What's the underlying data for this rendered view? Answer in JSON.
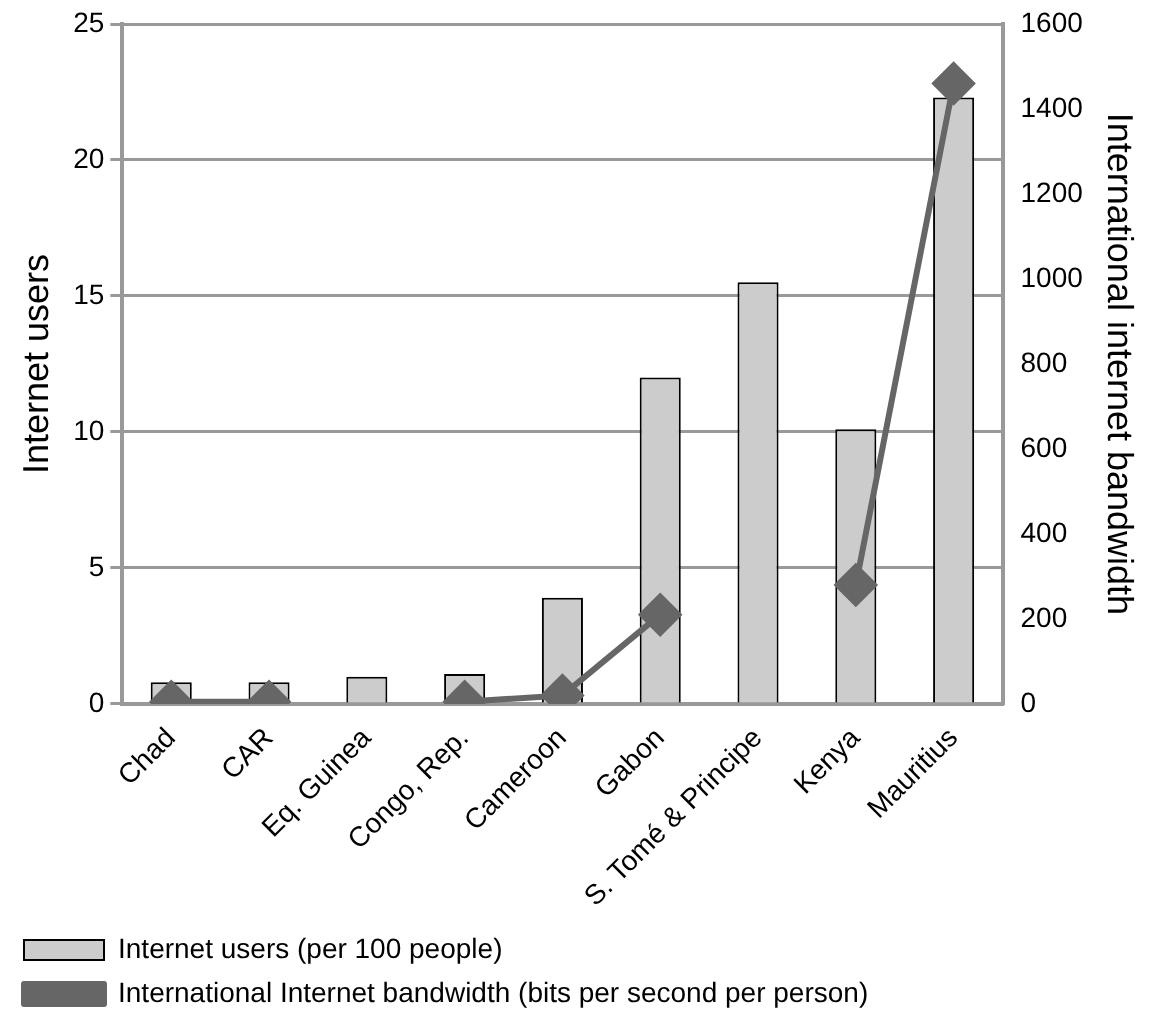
{
  "chart_data": {
    "type": "bar",
    "categories": [
      "Chad",
      "CAR",
      "Eq. Guinea",
      "Congo, Rep.",
      "Cameroon",
      "Gabon",
      "S. Tomé & Principe",
      "Kenya",
      "Mauritius"
    ],
    "series": [
      {
        "name": "Internet users (per 100 people)",
        "color": "#cccccc",
        "values": [
          0.8,
          0.8,
          1.0,
          1.1,
          3.9,
          12.0,
          15.5,
          10.1,
          22.3
        ]
      },
      {
        "name": "International Internet bandwidth (bits per second per person)",
        "type": "line",
        "axis": "y2",
        "color": "#666666",
        "values": [
          5,
          5,
          null,
          5,
          20,
          210,
          null,
          280,
          1460
        ]
      }
    ],
    "ylabel": "Internet users",
    "y2label": "International internet bandwidth",
    "ylim": [
      0,
      25
    ],
    "yticks": [
      0,
      5,
      10,
      15,
      20,
      25
    ],
    "y2lim": [
      0,
      1600
    ],
    "y2ticks": [
      0,
      200,
      400,
      600,
      800,
      1000,
      1200,
      1400,
      1600
    ],
    "grid": "y",
    "legend": "bottom left",
    "marker": "diamond",
    "line_style": "solid"
  }
}
